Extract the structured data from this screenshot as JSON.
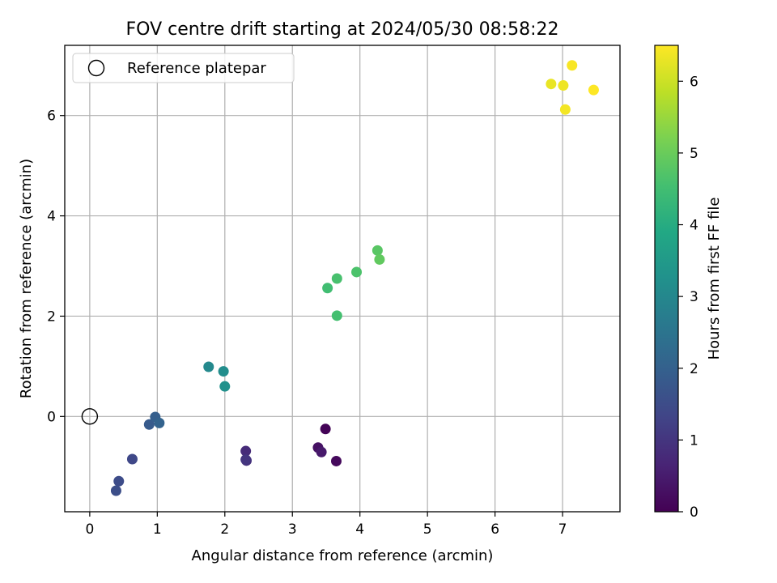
{
  "chart_data": {
    "type": "scatter",
    "title": "FOV centre drift starting at 2024/05/30 08:58:22",
    "xlabel": "Angular distance from reference (arcmin)",
    "ylabel": "Rotation from reference (arcmin)",
    "xlim": [
      -0.37,
      7.85
    ],
    "ylim": [
      -1.9,
      7.4
    ],
    "xticks": [
      0,
      1,
      2,
      3,
      4,
      5,
      6,
      7
    ],
    "yticks": [
      0,
      2,
      4,
      6
    ],
    "grid": true,
    "legend_position": "upper-left",
    "reference": {
      "label": "Reference platepar",
      "x": 0,
      "y": 0
    },
    "colorbar": {
      "label": "Hours from first FF file",
      "range": [
        0,
        6.5
      ],
      "ticks": [
        0,
        1,
        2,
        3,
        4,
        5,
        6
      ],
      "colormap": "viridis"
    },
    "points": [
      {
        "x": 3.49,
        "y": -0.25,
        "hours": 0.05
      },
      {
        "x": 3.65,
        "y": -0.89,
        "hours": 0.15
      },
      {
        "x": 3.38,
        "y": -0.62,
        "hours": 0.3
      },
      {
        "x": 3.43,
        "y": -0.71,
        "hours": 0.45
      },
      {
        "x": 2.31,
        "y": -0.69,
        "hours": 0.8
      },
      {
        "x": 2.32,
        "y": -0.88,
        "hours": 0.9
      },
      {
        "x": 2.31,
        "y": -0.86,
        "hours": 1.0
      },
      {
        "x": 0.63,
        "y": -0.85,
        "hours": 1.4
      },
      {
        "x": 0.43,
        "y": -1.29,
        "hours": 1.5
      },
      {
        "x": 0.39,
        "y": -1.48,
        "hours": 1.55
      },
      {
        "x": 0.88,
        "y": -0.16,
        "hours": 1.85
      },
      {
        "x": 0.97,
        "y": -0.01,
        "hours": 1.95
      },
      {
        "x": 1.03,
        "y": -0.13,
        "hours": 2.05
      },
      {
        "x": 1.76,
        "y": 0.99,
        "hours": 3.05
      },
      {
        "x": 1.98,
        "y": 0.9,
        "hours": 3.15
      },
      {
        "x": 2.0,
        "y": 0.6,
        "hours": 3.25
      },
      {
        "x": 3.52,
        "y": 2.56,
        "hours": 4.5
      },
      {
        "x": 3.66,
        "y": 2.01,
        "hours": 4.55
      },
      {
        "x": 3.66,
        "y": 2.75,
        "hours": 4.6
      },
      {
        "x": 3.95,
        "y": 2.88,
        "hours": 4.65
      },
      {
        "x": 4.26,
        "y": 3.31,
        "hours": 4.8
      },
      {
        "x": 4.29,
        "y": 3.13,
        "hours": 4.9
      },
      {
        "x": 6.83,
        "y": 6.63,
        "hours": 6.3
      },
      {
        "x": 7.01,
        "y": 6.6,
        "hours": 6.35
      },
      {
        "x": 7.04,
        "y": 6.12,
        "hours": 6.4
      },
      {
        "x": 7.14,
        "y": 7.0,
        "hours": 6.45
      },
      {
        "x": 7.46,
        "y": 6.51,
        "hours": 6.5
      }
    ]
  }
}
